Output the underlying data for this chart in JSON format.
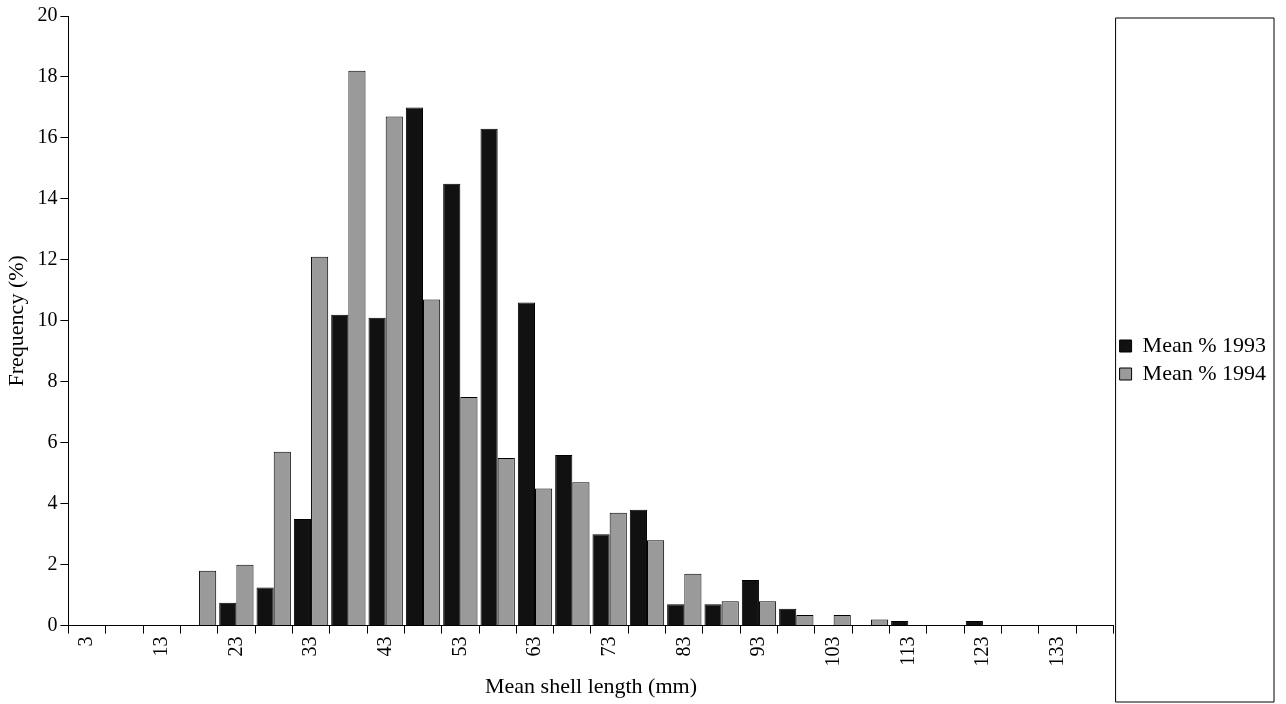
{
  "chart_data": {
    "type": "bar",
    "xlabel": "Mean shell length (mm)",
    "ylabel": "Frequency (%)",
    "categories": [
      "3",
      null,
      "13",
      null,
      "23",
      null,
      "33",
      null,
      "43",
      null,
      "53",
      null,
      "63",
      null,
      "73",
      null,
      "83",
      null,
      "93",
      null,
      "103",
      null,
      "113",
      null,
      "123",
      null,
      "133",
      null
    ],
    "series": [
      {
        "name": "Mean % 1993",
        "color": "#111111",
        "values": [
          0,
          0,
          0,
          0,
          0.75,
          1.25,
          3.5,
          10.2,
          10.1,
          17.0,
          14.5,
          16.3,
          10.6,
          5.6,
          3.0,
          3.8,
          0.7,
          0.7,
          1.5,
          0.55,
          0,
          0,
          0.15,
          0,
          0.15,
          0,
          0,
          0
        ]
      },
      {
        "name": "Mean % 1994",
        "color": "#9a9a9a",
        "values": [
          0,
          0,
          0,
          1.8,
          2.0,
          5.7,
          12.1,
          18.2,
          16.7,
          10.7,
          7.5,
          5.5,
          4.5,
          4.7,
          3.7,
          2.8,
          1.7,
          0.8,
          0.8,
          0.35,
          0.35,
          0.2,
          0,
          0,
          0,
          0,
          0,
          0
        ]
      }
    ],
    "ylim": [
      0,
      20
    ],
    "yticks": [
      0,
      2,
      4,
      6,
      8,
      10,
      12,
      14,
      16,
      18,
      20
    ],
    "grid": false,
    "legend": "right"
  }
}
